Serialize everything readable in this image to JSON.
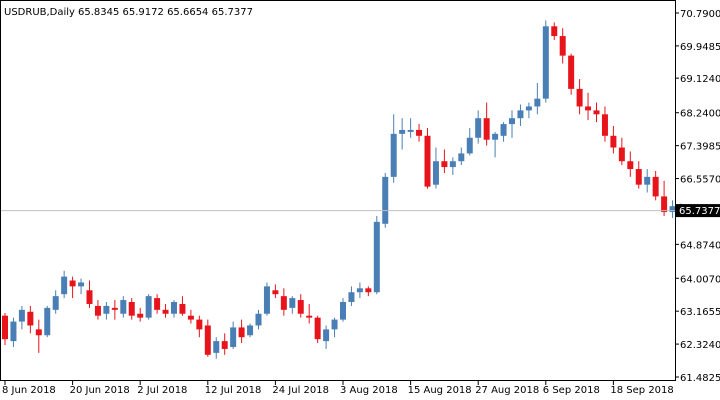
{
  "header": {
    "symbol": "USDRUB,Daily",
    "ohlc": "65.8345 65.9172 65.6654 65.7377"
  },
  "current_price_label": "65.7377",
  "colors": {
    "up": "#4a7fb5",
    "down": "#e8141c",
    "axis": "#000000",
    "price_line": "#c0c0c0",
    "price_label_bg": "#000000",
    "price_label_fg": "#ffffff"
  },
  "chart_data": {
    "type": "candlestick",
    "title": "",
    "xlabel": "",
    "ylabel": "",
    "ylim": [
      61.4825,
      70.79
    ],
    "y_ticks": [
      "70.7900",
      "69.9485",
      "69.1240",
      "68.2400",
      "67.3985",
      "66.5570",
      "64.8740",
      "64.0070",
      "63.1655",
      "62.3240",
      "61.4825"
    ],
    "x_ticks": [
      "8 Jun 2018",
      "20 Jun 2018",
      "2 Jul 2018",
      "12 Jul 2018",
      "24 Jul 2018",
      "3 Aug 2018",
      "15 Aug 2018",
      "27 Aug 2018",
      "6 Sep 2018",
      "18 Sep 2018"
    ],
    "x_tick_index": [
      0,
      8,
      16,
      24,
      32,
      40,
      48,
      56,
      64,
      72
    ],
    "last_close": 65.7377,
    "candles": [
      [
        63.05,
        63.12,
        62.3,
        62.45
      ],
      [
        62.4,
        63.0,
        62.25,
        62.9
      ],
      [
        62.9,
        63.3,
        62.7,
        63.2
      ],
      [
        63.15,
        63.3,
        62.6,
        62.8
      ],
      [
        62.7,
        62.95,
        62.1,
        62.55
      ],
      [
        62.55,
        63.3,
        62.5,
        63.25
      ],
      [
        63.2,
        63.7,
        63.1,
        63.55
      ],
      [
        63.6,
        64.2,
        63.5,
        64.05
      ],
      [
        63.95,
        64.05,
        63.5,
        63.8
      ],
      [
        63.8,
        64.0,
        63.6,
        63.9
      ],
      [
        63.7,
        63.95,
        63.25,
        63.35
      ],
      [
        63.3,
        63.45,
        62.95,
        63.05
      ],
      [
        63.1,
        63.4,
        62.95,
        63.3
      ],
      [
        63.25,
        63.45,
        62.95,
        63.2
      ],
      [
        63.1,
        63.55,
        63.0,
        63.45
      ],
      [
        63.4,
        63.5,
        62.95,
        63.05
      ],
      [
        63.1,
        63.25,
        62.9,
        63.0
      ],
      [
        63.0,
        63.6,
        62.95,
        63.55
      ],
      [
        63.5,
        63.6,
        63.1,
        63.2
      ],
      [
        63.2,
        63.35,
        63.0,
        63.1
      ],
      [
        63.1,
        63.45,
        63.0,
        63.4
      ],
      [
        63.35,
        63.55,
        63.05,
        63.1
      ],
      [
        63.05,
        63.2,
        62.85,
        62.95
      ],
      [
        62.95,
        63.05,
        62.5,
        62.7
      ],
      [
        62.8,
        62.95,
        62.0,
        62.05
      ],
      [
        62.1,
        62.5,
        61.95,
        62.4
      ],
      [
        62.4,
        62.6,
        62.05,
        62.2
      ],
      [
        62.25,
        62.9,
        62.2,
        62.75
      ],
      [
        62.75,
        62.95,
        62.35,
        62.5
      ],
      [
        62.55,
        62.85,
        62.5,
        62.8
      ],
      [
        62.8,
        63.2,
        62.7,
        63.1
      ],
      [
        63.1,
        63.9,
        63.05,
        63.8
      ],
      [
        63.7,
        63.85,
        63.5,
        63.6
      ],
      [
        63.55,
        63.75,
        63.05,
        63.2
      ],
      [
        63.25,
        63.55,
        63.1,
        63.5
      ],
      [
        63.45,
        63.6,
        63.0,
        63.1
      ],
      [
        63.05,
        63.35,
        62.85,
        63.0
      ],
      [
        63.0,
        63.05,
        62.35,
        62.45
      ],
      [
        62.4,
        62.8,
        62.2,
        62.7
      ],
      [
        62.7,
        63.0,
        62.5,
        62.95
      ],
      [
        62.95,
        63.5,
        62.9,
        63.4
      ],
      [
        63.4,
        63.8,
        63.3,
        63.65
      ],
      [
        63.65,
        63.9,
        63.5,
        63.75
      ],
      [
        63.75,
        63.8,
        63.55,
        63.65
      ],
      [
        63.65,
        65.6,
        63.6,
        65.45
      ],
      [
        65.4,
        66.7,
        65.3,
        66.6
      ],
      [
        66.6,
        68.2,
        66.45,
        67.7
      ],
      [
        67.7,
        68.1,
        67.3,
        67.8
      ],
      [
        67.75,
        68.1,
        67.6,
        67.8
      ],
      [
        67.8,
        67.95,
        67.5,
        67.65
      ],
      [
        67.65,
        67.85,
        66.3,
        66.35
      ],
      [
        66.4,
        67.35,
        66.3,
        67.0
      ],
      [
        67.0,
        67.3,
        66.7,
        66.85
      ],
      [
        66.85,
        67.1,
        66.65,
        67.0
      ],
      [
        67.0,
        67.35,
        66.9,
        67.2
      ],
      [
        67.2,
        67.85,
        67.15,
        67.6
      ],
      [
        67.6,
        68.3,
        67.45,
        68.1
      ],
      [
        68.1,
        68.5,
        67.4,
        67.55
      ],
      [
        67.55,
        67.75,
        67.1,
        67.7
      ],
      [
        67.65,
        68.0,
        67.5,
        67.95
      ],
      [
        67.95,
        68.3,
        67.6,
        68.1
      ],
      [
        68.1,
        68.45,
        67.9,
        68.3
      ],
      [
        68.3,
        68.5,
        68.1,
        68.4
      ],
      [
        68.4,
        69.0,
        68.2,
        68.6
      ],
      [
        68.6,
        70.6,
        68.5,
        70.45
      ],
      [
        70.45,
        70.55,
        70.1,
        70.2
      ],
      [
        70.2,
        70.4,
        69.5,
        69.7
      ],
      [
        69.7,
        69.75,
        68.7,
        68.85
      ],
      [
        68.85,
        69.1,
        68.2,
        68.4
      ],
      [
        68.4,
        68.75,
        68.05,
        68.3
      ],
      [
        68.3,
        68.5,
        68.0,
        68.2
      ],
      [
        68.2,
        68.4,
        67.5,
        67.65
      ],
      [
        67.65,
        67.9,
        67.2,
        67.35
      ],
      [
        67.35,
        67.6,
        66.9,
        67.0
      ],
      [
        67.0,
        67.25,
        66.6,
        66.8
      ],
      [
        66.8,
        67.0,
        66.3,
        66.4
      ],
      [
        66.4,
        66.8,
        66.2,
        66.6
      ],
      [
        66.6,
        66.75,
        66.0,
        66.1
      ],
      [
        66.1,
        66.5,
        65.6,
        65.7
      ],
      [
        65.7,
        66.0,
        65.55,
        65.85
      ],
      [
        65.8345,
        65.9172,
        65.6654,
        65.7377
      ]
    ]
  }
}
